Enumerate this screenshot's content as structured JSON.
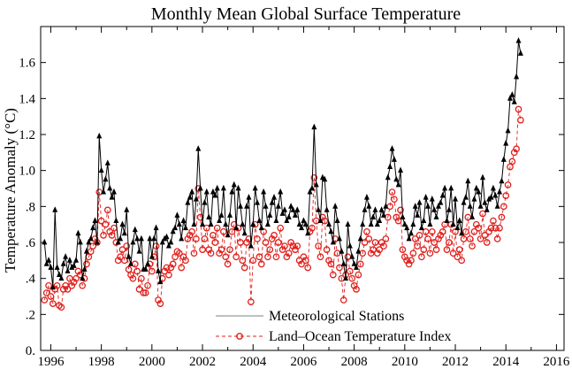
{
  "chart_data": {
    "type": "line",
    "title": "Monthly Mean Global Surface Temperature",
    "ylabel": "Temperature Anomaly (°C)",
    "xlim": [
      1995.6,
      2016.3
    ],
    "ylim": [
      0,
      1.8
    ],
    "xticks": [
      1996,
      1998,
      2000,
      2002,
      2004,
      2006,
      2008,
      2010,
      2012,
      2014,
      2016
    ],
    "xtick_labels": [
      "1996",
      "1998",
      "2000",
      "2002",
      "2004",
      "2006",
      "2008",
      "2010",
      "2012",
      "2014",
      "2016"
    ],
    "yticks": [
      0,
      0.2,
      0.4,
      0.6,
      0.8,
      1.0,
      1.2,
      1.4,
      1.6
    ],
    "ytick_labels": [
      "0.",
      ".2",
      ".4",
      ".6",
      ".8",
      "1.0",
      "1.2",
      "1.4",
      "1.6"
    ],
    "grid": false,
    "legend_position": "bottom-right",
    "series": [
      {
        "name": "Meteorological Stations",
        "color": "#000000",
        "marker": "triangle",
        "line_style": "solid",
        "x_start": 1995.75,
        "x_step": 0.08333,
        "values": [
          0.6,
          0.48,
          0.5,
          0.46,
          0.35,
          0.78,
          0.46,
          0.42,
          0.4,
          0.48,
          0.52,
          0.44,
          0.5,
          0.46,
          0.47,
          0.5,
          0.65,
          0.6,
          0.4,
          0.45,
          0.55,
          0.6,
          0.62,
          0.68,
          0.72,
          0.6,
          1.19,
          1.0,
          0.88,
          0.95,
          1.04,
          0.9,
          0.85,
          0.88,
          0.72,
          0.6,
          0.62,
          0.7,
          0.65,
          0.78,
          0.52,
          0.48,
          0.6,
          0.67,
          0.62,
          0.55,
          0.62,
          0.45,
          0.45,
          0.48,
          0.62,
          0.52,
          0.62,
          0.68,
          0.44,
          0.38,
          0.6,
          0.62,
          0.63,
          0.58,
          0.6,
          0.66,
          0.68,
          0.75,
          0.7,
          0.62,
          0.72,
          0.68,
          0.82,
          0.85,
          0.88,
          0.7,
          0.84,
          1.12,
          0.9,
          0.7,
          0.82,
          0.88,
          0.74,
          0.7,
          0.88,
          0.86,
          0.9,
          0.72,
          0.75,
          0.9,
          0.7,
          0.64,
          0.75,
          0.88,
          0.92,
          0.68,
          0.9,
          0.8,
          0.7,
          0.65,
          0.8,
          0.85,
          0.58,
          0.7,
          0.9,
          0.82,
          0.72,
          0.68,
          0.88,
          0.8,
          0.7,
          0.75,
          0.82,
          0.85,
          0.72,
          0.8,
          0.88,
          0.76,
          0.78,
          0.72,
          0.74,
          0.8,
          0.78,
          0.75,
          0.78,
          0.7,
          0.68,
          0.72,
          0.7,
          0.65,
          0.88,
          0.9,
          1.24,
          0.92,
          0.78,
          0.72,
          0.96,
          0.95,
          0.78,
          0.7,
          0.66,
          0.6,
          0.8,
          0.72,
          0.62,
          0.55,
          0.48,
          0.4,
          0.7,
          0.58,
          0.52,
          0.48,
          0.46,
          0.55,
          0.62,
          0.7,
          0.78,
          0.85,
          0.8,
          0.7,
          0.74,
          0.78,
          0.7,
          0.72,
          0.78,
          0.75,
          0.8,
          0.96,
          1.02,
          1.12,
          1.06,
          0.95,
          0.92,
          1.0,
          0.74,
          0.7,
          0.68,
          0.62,
          0.65,
          0.7,
          0.8,
          0.75,
          0.82,
          0.68,
          0.72,
          0.85,
          0.8,
          0.7,
          0.84,
          0.78,
          0.74,
          0.8,
          0.82,
          0.86,
          0.9,
          0.72,
          0.78,
          0.9,
          0.7,
          0.84,
          0.68,
          0.72,
          0.65,
          0.82,
          0.85,
          0.94,
          0.8,
          0.74,
          0.84,
          0.9,
          0.88,
          0.8,
          0.96,
          0.82,
          0.78,
          0.84,
          0.85,
          0.9,
          0.86,
          0.8,
          0.88,
          0.94,
          1.06,
          1.15,
          1.22,
          1.4,
          1.42,
          1.38,
          1.52,
          1.72,
          1.65
        ]
      },
      {
        "name": "Land–Ocean Temperature Index",
        "color": "#e0201c",
        "marker": "circle",
        "line_style": "dashed",
        "x_start": 1995.75,
        "x_step": 0.08333,
        "values": [
          0.28,
          0.32,
          0.36,
          0.3,
          0.26,
          0.34,
          0.36,
          0.25,
          0.24,
          0.34,
          0.36,
          0.34,
          0.4,
          0.36,
          0.38,
          0.4,
          0.44,
          0.42,
          0.36,
          0.4,
          0.48,
          0.52,
          0.55,
          0.58,
          0.62,
          0.6,
          0.88,
          0.72,
          0.64,
          0.7,
          0.78,
          0.66,
          0.64,
          0.68,
          0.6,
          0.5,
          0.52,
          0.56,
          0.5,
          0.58,
          0.45,
          0.42,
          0.4,
          0.48,
          0.44,
          0.34,
          0.4,
          0.32,
          0.32,
          0.36,
          0.48,
          0.44,
          0.52,
          0.58,
          0.28,
          0.26,
          0.4,
          0.44,
          0.46,
          0.42,
          0.46,
          0.48,
          0.52,
          0.55,
          0.54,
          0.46,
          0.52,
          0.5,
          0.62,
          0.64,
          0.66,
          0.54,
          0.62,
          0.9,
          0.74,
          0.56,
          0.62,
          0.68,
          0.56,
          0.54,
          0.64,
          0.6,
          0.68,
          0.54,
          0.56,
          0.66,
          0.52,
          0.48,
          0.56,
          0.66,
          0.7,
          0.52,
          0.68,
          0.6,
          0.5,
          0.46,
          0.6,
          0.62,
          0.27,
          0.5,
          0.7,
          0.62,
          0.52,
          0.48,
          0.66,
          0.6,
          0.52,
          0.56,
          0.62,
          0.64,
          0.52,
          0.6,
          0.68,
          0.56,
          0.58,
          0.52,
          0.54,
          0.6,
          0.58,
          0.56,
          0.58,
          0.5,
          0.48,
          0.52,
          0.5,
          0.46,
          0.66,
          0.68,
          0.96,
          0.72,
          0.58,
          0.52,
          0.74,
          0.72,
          0.56,
          0.5,
          0.48,
          0.42,
          0.62,
          0.54,
          0.46,
          0.4,
          0.28,
          0.42,
          0.52,
          0.44,
          0.4,
          0.36,
          0.34,
          0.42,
          0.48,
          0.54,
          0.6,
          0.66,
          0.62,
          0.54,
          0.56,
          0.6,
          0.54,
          0.56,
          0.6,
          0.58,
          0.62,
          0.74,
          0.8,
          0.88,
          0.84,
          0.74,
          0.72,
          0.78,
          0.56,
          0.52,
          0.5,
          0.48,
          0.5,
          0.54,
          0.62,
          0.58,
          0.64,
          0.52,
          0.56,
          0.66,
          0.62,
          0.54,
          0.66,
          0.6,
          0.56,
          0.62,
          0.64,
          0.66,
          0.7,
          0.56,
          0.6,
          0.7,
          0.54,
          0.66,
          0.52,
          0.56,
          0.5,
          0.62,
          0.66,
          0.74,
          0.62,
          0.58,
          0.66,
          0.7,
          0.68,
          0.62,
          0.76,
          0.64,
          0.6,
          0.66,
          0.68,
          0.72,
          0.68,
          0.62,
          0.68,
          0.74,
          0.8,
          0.86,
          0.92,
          1.02,
          1.05,
          1.1,
          1.12,
          1.34,
          1.28
        ]
      }
    ]
  }
}
